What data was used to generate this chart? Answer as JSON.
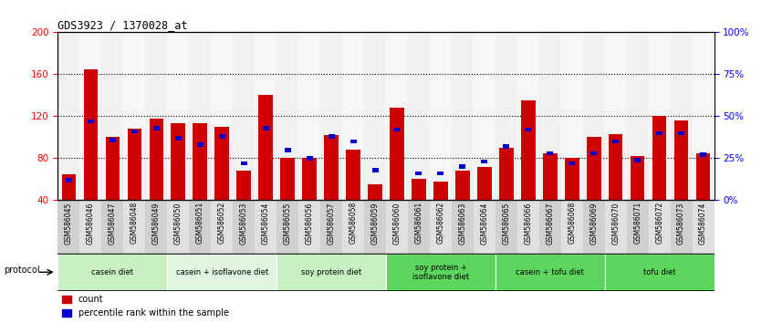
{
  "title": "GDS3923 / 1370028_at",
  "samples": [
    "GSM586045",
    "GSM586046",
    "GSM586047",
    "GSM586048",
    "GSM586049",
    "GSM586050",
    "GSM586051",
    "GSM586052",
    "GSM586053",
    "GSM586054",
    "GSM586055",
    "GSM586056",
    "GSM586057",
    "GSM586058",
    "GSM586059",
    "GSM586060",
    "GSM586061",
    "GSM586062",
    "GSM586063",
    "GSM586064",
    "GSM586065",
    "GSM586066",
    "GSM586067",
    "GSM586068",
    "GSM586069",
    "GSM586070",
    "GSM586071",
    "GSM586072",
    "GSM586073",
    "GSM586074"
  ],
  "count_values": [
    65,
    165,
    100,
    108,
    118,
    113,
    113,
    110,
    68,
    140,
    80,
    80,
    102,
    88,
    55,
    128,
    60,
    58,
    68,
    72,
    90,
    135,
    85,
    80,
    100,
    103,
    82,
    120,
    116,
    85
  ],
  "percentile_values": [
    12,
    47,
    36,
    41,
    43,
    37,
    33,
    38,
    22,
    43,
    30,
    25,
    38,
    35,
    18,
    42,
    16,
    16,
    20,
    23,
    32,
    42,
    28,
    22,
    28,
    35,
    24,
    40,
    40,
    27
  ],
  "groups": [
    {
      "label": "casein diet",
      "start": 0,
      "end": 5,
      "color": "#c8f0c0"
    },
    {
      "label": "casein + isoflavone diet",
      "start": 5,
      "end": 10,
      "color": "#e0f5e0"
    },
    {
      "label": "soy protein diet",
      "start": 10,
      "end": 15,
      "color": "#c8f0c0"
    },
    {
      "label": "soy protein +\nisoflavone diet",
      "start": 15,
      "end": 20,
      "color": "#5cd65c"
    },
    {
      "label": "casein + tofu diet",
      "start": 20,
      "end": 25,
      "color": "#5cd65c"
    },
    {
      "label": "tofu diet",
      "start": 25,
      "end": 30,
      "color": "#5cd65c"
    }
  ],
  "sample_bg_colors": [
    "#d0d0d0",
    "#e8e8e8",
    "#d0d0d0",
    "#e8e8e8",
    "#d0d0d0",
    "#d0d0d0",
    "#e8e8e8",
    "#d0d0d0",
    "#e8e8e8",
    "#d0d0d0",
    "#d0d0d0",
    "#e8e8e8",
    "#d0d0d0",
    "#e8e8e8",
    "#d0d0d0",
    "#d0d0d0",
    "#e8e8e8",
    "#d0d0d0",
    "#e8e8e8",
    "#d0d0d0",
    "#d0d0d0",
    "#e8e8e8",
    "#d0d0d0",
    "#e8e8e8",
    "#d0d0d0",
    "#d0d0d0",
    "#e8e8e8",
    "#d0d0d0",
    "#e8e8e8",
    "#d0d0d0"
  ],
  "ylim_left": [
    40,
    200
  ],
  "ylim_right": [
    0,
    100
  ],
  "yticks_left": [
    40,
    80,
    120,
    160,
    200
  ],
  "yticks_right": [
    0,
    25,
    50,
    75,
    100
  ],
  "bar_color": "#cc0000",
  "percentile_color": "#0000cc",
  "bg_color": "#ffffff",
  "protocol_label": "protocol"
}
